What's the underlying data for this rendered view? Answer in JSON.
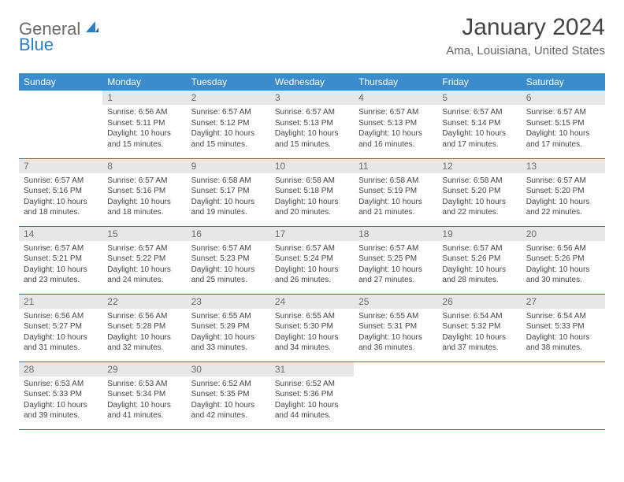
{
  "logo": {
    "general": "General",
    "blue": "Blue"
  },
  "title": "January 2024",
  "location": "Ama, Louisiana, United States",
  "colors": {
    "header_bg": "#3b8ccc",
    "header_text": "#ffffff",
    "daynum_bg": "#e7e7e7",
    "daynum_text": "#6d6d6d",
    "border": "#2a6fa6",
    "logo_blue": "#2a7ec5",
    "logo_gray": "#6b6b6b"
  },
  "weekdays": [
    "Sunday",
    "Monday",
    "Tuesday",
    "Wednesday",
    "Thursday",
    "Friday",
    "Saturday"
  ],
  "weeks": [
    {
      "d0": null,
      "d1": {
        "n": "1",
        "sr": "Sunrise: 6:56 AM",
        "ss": "Sunset: 5:11 PM",
        "dl": "Daylight: 10 hours and 15 minutes."
      },
      "d2": {
        "n": "2",
        "sr": "Sunrise: 6:57 AM",
        "ss": "Sunset: 5:12 PM",
        "dl": "Daylight: 10 hours and 15 minutes."
      },
      "d3": {
        "n": "3",
        "sr": "Sunrise: 6:57 AM",
        "ss": "Sunset: 5:13 PM",
        "dl": "Daylight: 10 hours and 15 minutes."
      },
      "d4": {
        "n": "4",
        "sr": "Sunrise: 6:57 AM",
        "ss": "Sunset: 5:13 PM",
        "dl": "Daylight: 10 hours and 16 minutes."
      },
      "d5": {
        "n": "5",
        "sr": "Sunrise: 6:57 AM",
        "ss": "Sunset: 5:14 PM",
        "dl": "Daylight: 10 hours and 17 minutes."
      },
      "d6": {
        "n": "6",
        "sr": "Sunrise: 6:57 AM",
        "ss": "Sunset: 5:15 PM",
        "dl": "Daylight: 10 hours and 17 minutes."
      }
    },
    {
      "d0": {
        "n": "7",
        "sr": "Sunrise: 6:57 AM",
        "ss": "Sunset: 5:16 PM",
        "dl": "Daylight: 10 hours and 18 minutes."
      },
      "d1": {
        "n": "8",
        "sr": "Sunrise: 6:57 AM",
        "ss": "Sunset: 5:16 PM",
        "dl": "Daylight: 10 hours and 18 minutes."
      },
      "d2": {
        "n": "9",
        "sr": "Sunrise: 6:58 AM",
        "ss": "Sunset: 5:17 PM",
        "dl": "Daylight: 10 hours and 19 minutes."
      },
      "d3": {
        "n": "10",
        "sr": "Sunrise: 6:58 AM",
        "ss": "Sunset: 5:18 PM",
        "dl": "Daylight: 10 hours and 20 minutes."
      },
      "d4": {
        "n": "11",
        "sr": "Sunrise: 6:58 AM",
        "ss": "Sunset: 5:19 PM",
        "dl": "Daylight: 10 hours and 21 minutes."
      },
      "d5": {
        "n": "12",
        "sr": "Sunrise: 6:58 AM",
        "ss": "Sunset: 5:20 PM",
        "dl": "Daylight: 10 hours and 22 minutes."
      },
      "d6": {
        "n": "13",
        "sr": "Sunrise: 6:57 AM",
        "ss": "Sunset: 5:20 PM",
        "dl": "Daylight: 10 hours and 22 minutes."
      }
    },
    {
      "d0": {
        "n": "14",
        "sr": "Sunrise: 6:57 AM",
        "ss": "Sunset: 5:21 PM",
        "dl": "Daylight: 10 hours and 23 minutes."
      },
      "d1": {
        "n": "15",
        "sr": "Sunrise: 6:57 AM",
        "ss": "Sunset: 5:22 PM",
        "dl": "Daylight: 10 hours and 24 minutes."
      },
      "d2": {
        "n": "16",
        "sr": "Sunrise: 6:57 AM",
        "ss": "Sunset: 5:23 PM",
        "dl": "Daylight: 10 hours and 25 minutes."
      },
      "d3": {
        "n": "17",
        "sr": "Sunrise: 6:57 AM",
        "ss": "Sunset: 5:24 PM",
        "dl": "Daylight: 10 hours and 26 minutes."
      },
      "d4": {
        "n": "18",
        "sr": "Sunrise: 6:57 AM",
        "ss": "Sunset: 5:25 PM",
        "dl": "Daylight: 10 hours and 27 minutes."
      },
      "d5": {
        "n": "19",
        "sr": "Sunrise: 6:57 AM",
        "ss": "Sunset: 5:26 PM",
        "dl": "Daylight: 10 hours and 28 minutes."
      },
      "d6": {
        "n": "20",
        "sr": "Sunrise: 6:56 AM",
        "ss": "Sunset: 5:26 PM",
        "dl": "Daylight: 10 hours and 30 minutes."
      }
    },
    {
      "d0": {
        "n": "21",
        "sr": "Sunrise: 6:56 AM",
        "ss": "Sunset: 5:27 PM",
        "dl": "Daylight: 10 hours and 31 minutes."
      },
      "d1": {
        "n": "22",
        "sr": "Sunrise: 6:56 AM",
        "ss": "Sunset: 5:28 PM",
        "dl": "Daylight: 10 hours and 32 minutes."
      },
      "d2": {
        "n": "23",
        "sr": "Sunrise: 6:55 AM",
        "ss": "Sunset: 5:29 PM",
        "dl": "Daylight: 10 hours and 33 minutes."
      },
      "d3": {
        "n": "24",
        "sr": "Sunrise: 6:55 AM",
        "ss": "Sunset: 5:30 PM",
        "dl": "Daylight: 10 hours and 34 minutes."
      },
      "d4": {
        "n": "25",
        "sr": "Sunrise: 6:55 AM",
        "ss": "Sunset: 5:31 PM",
        "dl": "Daylight: 10 hours and 36 minutes."
      },
      "d5": {
        "n": "26",
        "sr": "Sunrise: 6:54 AM",
        "ss": "Sunset: 5:32 PM",
        "dl": "Daylight: 10 hours and 37 minutes."
      },
      "d6": {
        "n": "27",
        "sr": "Sunrise: 6:54 AM",
        "ss": "Sunset: 5:33 PM",
        "dl": "Daylight: 10 hours and 38 minutes."
      }
    },
    {
      "d0": {
        "n": "28",
        "sr": "Sunrise: 6:53 AM",
        "ss": "Sunset: 5:33 PM",
        "dl": "Daylight: 10 hours and 39 minutes."
      },
      "d1": {
        "n": "29",
        "sr": "Sunrise: 6:53 AM",
        "ss": "Sunset: 5:34 PM",
        "dl": "Daylight: 10 hours and 41 minutes."
      },
      "d2": {
        "n": "30",
        "sr": "Sunrise: 6:52 AM",
        "ss": "Sunset: 5:35 PM",
        "dl": "Daylight: 10 hours and 42 minutes."
      },
      "d3": {
        "n": "31",
        "sr": "Sunrise: 6:52 AM",
        "ss": "Sunset: 5:36 PM",
        "dl": "Daylight: 10 hours and 44 minutes."
      },
      "d4": null,
      "d5": null,
      "d6": null
    }
  ]
}
